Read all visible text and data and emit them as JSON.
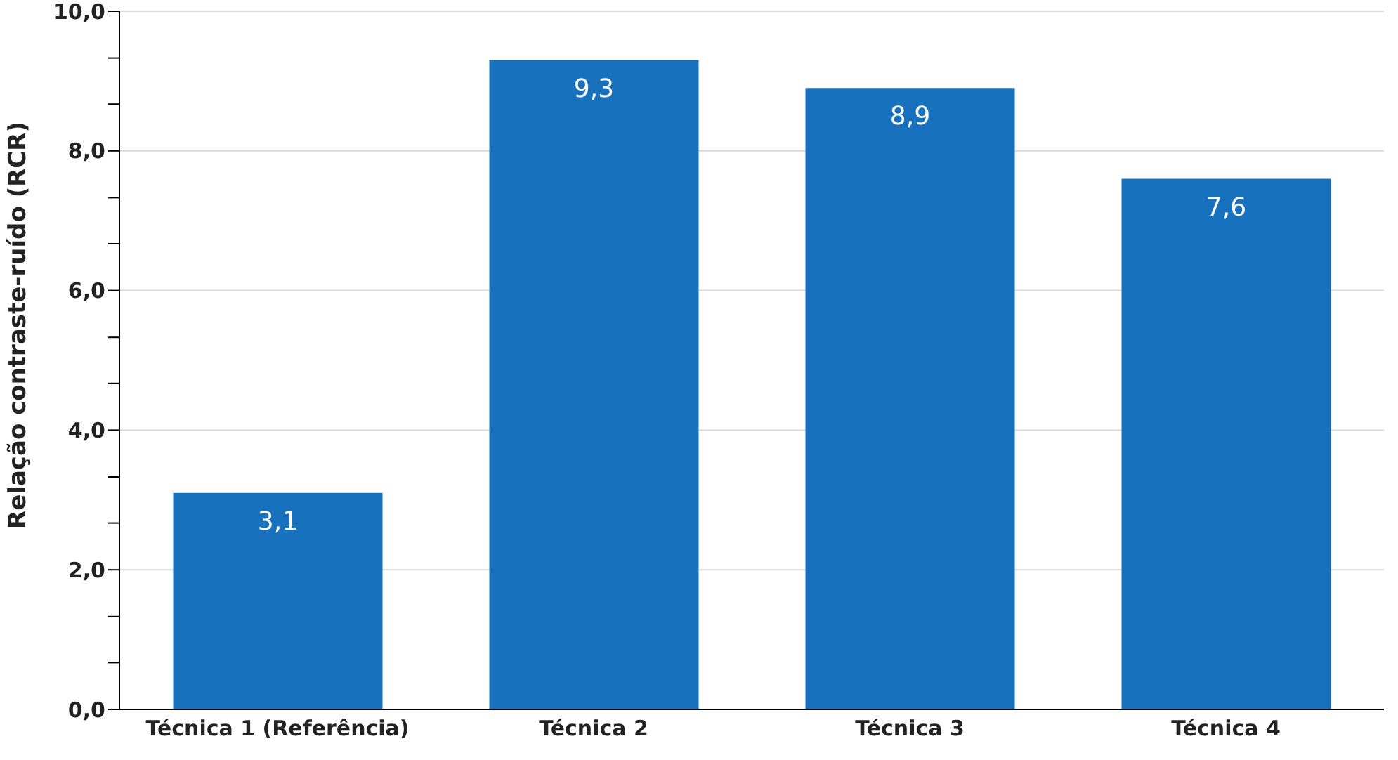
{
  "chart_data": {
    "type": "bar",
    "ylabel": "Relação contraste-ruído (RCR)",
    "categories": [
      "Técnica 1 (Referência)",
      "Técnica 2",
      "Técnica 3",
      "Técnica 4"
    ],
    "values": [
      3.1,
      9.3,
      8.9,
      7.6
    ],
    "color": "#1771bd",
    "value_labels": [
      "3,1",
      "9,3",
      "8,9",
      "7,6"
    ],
    "ylim": [
      0,
      10
    ],
    "yticks": [
      {
        "value": 0,
        "label": "0,0"
      },
      {
        "value": 0.67,
        "label": null
      },
      {
        "value": 1.33,
        "label": null
      },
      {
        "value": 2,
        "label": "2,0"
      },
      {
        "value": 2.67,
        "label": null
      },
      {
        "value": 3.33,
        "label": null
      },
      {
        "value": 4,
        "label": "4,0"
      },
      {
        "value": 4.67,
        "label": null
      },
      {
        "value": 5.33,
        "label": null
      },
      {
        "value": 6,
        "label": "6,0"
      },
      {
        "value": 6.67,
        "label": null
      },
      {
        "value": 7.33,
        "label": null
      },
      {
        "value": 8,
        "label": "8,0"
      },
      {
        "value": 8.67,
        "label": null
      },
      {
        "value": 9.33,
        "label": null
      },
      {
        "value": 10,
        "label": "10,0"
      }
    ],
    "grid": "y"
  }
}
